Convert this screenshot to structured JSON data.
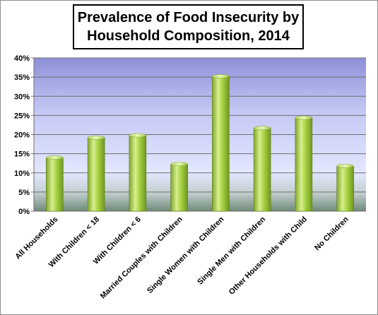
{
  "chart_data": {
    "type": "bar",
    "title_line1": "Prevalence of Food Insecurity by",
    "title_line2": "Household Composition, 2014",
    "categories": [
      "All Households",
      "With Children < 18",
      "With Children < 6",
      "Married Couples with Children",
      "Single Women with Children",
      "Single Men with Children",
      "Other Households with Child",
      "No Children"
    ],
    "values": [
      14.0,
      19.2,
      19.8,
      12.3,
      35.2,
      21.7,
      24.4,
      11.8
    ],
    "ylim": [
      0,
      40
    ],
    "yticks": [
      "0%",
      "5%",
      "10%",
      "15%",
      "20%",
      "25%",
      "30%",
      "35%",
      "40%"
    ],
    "xlabel": "",
    "ylabel": "",
    "grid": true,
    "legend": "none",
    "colors": {
      "bar_light": "#d8ef8e",
      "bar_mid": "#9fcc3b",
      "bar_dark": "#6f9622",
      "plot_top": "#8d90d8",
      "plot_mid": "#dde2ff",
      "plot_bottom": "#6f8a78"
    }
  }
}
